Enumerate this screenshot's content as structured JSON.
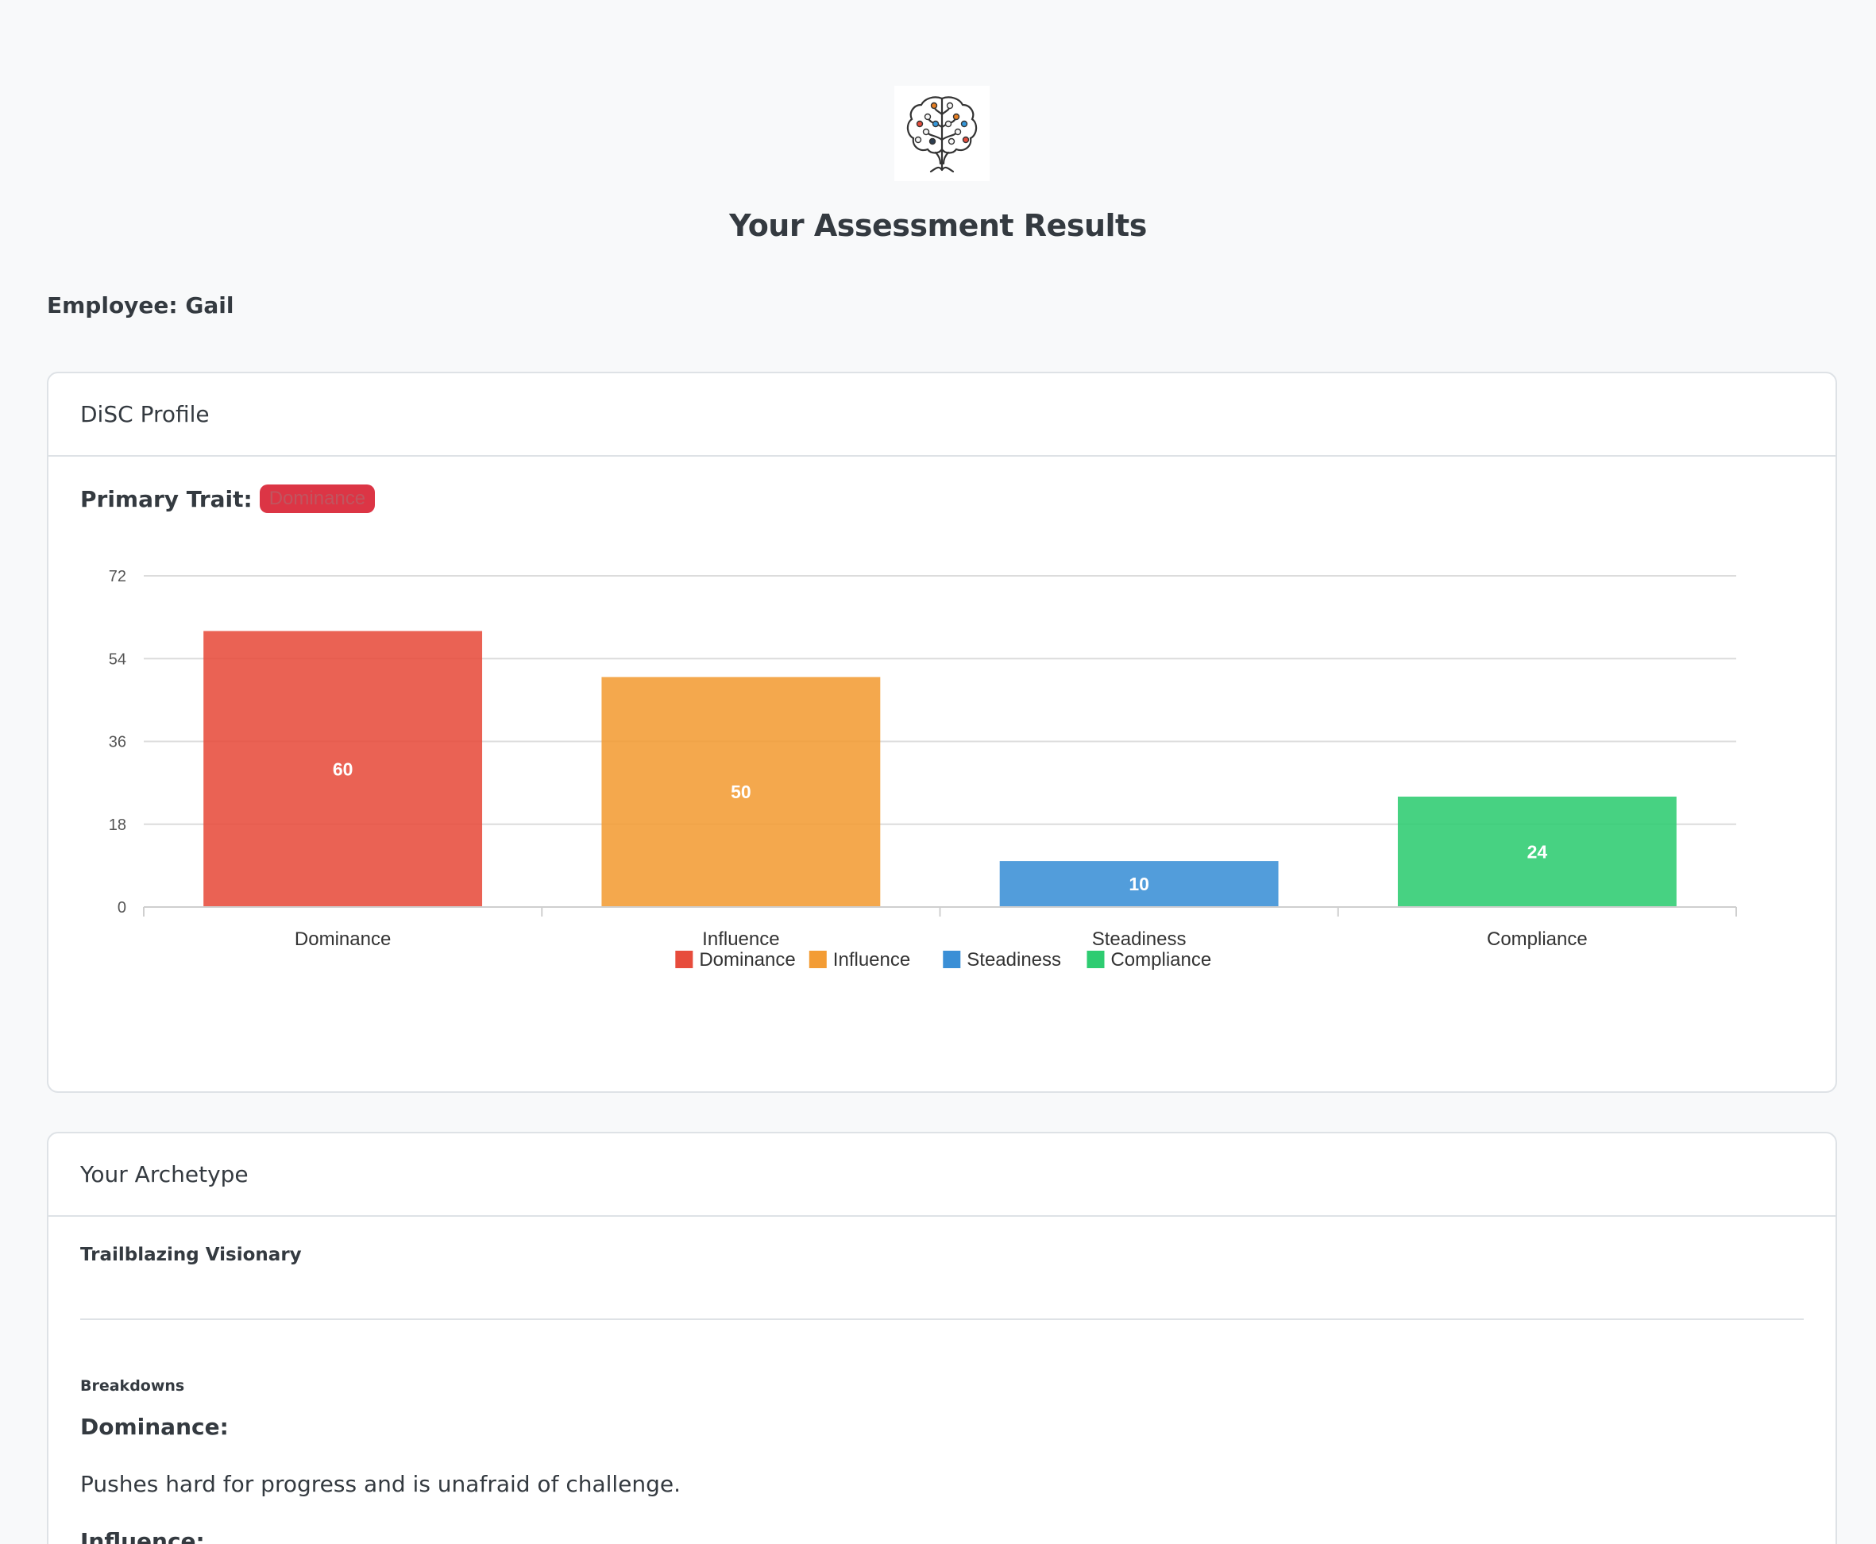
{
  "page": {
    "title": "Your Assessment Results",
    "employee": "Employee: Gail",
    "logo_icon": "brain-tree-icon"
  },
  "disc_card": {
    "header": "DiSC Profile",
    "primary_trait_label": "Primary Trait:",
    "primary_trait_value": "Dominance"
  },
  "chart_data": {
    "type": "bar",
    "categories": [
      "Dominance",
      "Influence",
      "Steadiness",
      "Compliance"
    ],
    "values": [
      60,
      50,
      10,
      24
    ],
    "colors": [
      "#e74c3c",
      "#f39c34",
      "#3a8fd6",
      "#2ecc71"
    ],
    "ylim": [
      0,
      72
    ],
    "yticks": [
      "0",
      "18",
      "36",
      "54",
      "72"
    ],
    "grid": true,
    "legend_position": "bottom"
  },
  "archetype_card": {
    "header": "Your Archetype",
    "name": "Trailblazing Visionary",
    "breakdowns_label": "Breakdowns",
    "breakdowns": [
      {
        "heading": "Dominance:",
        "text": "Pushes hard for progress and is unafraid of challenge."
      },
      {
        "heading": "Influence:",
        "text": ""
      }
    ]
  }
}
